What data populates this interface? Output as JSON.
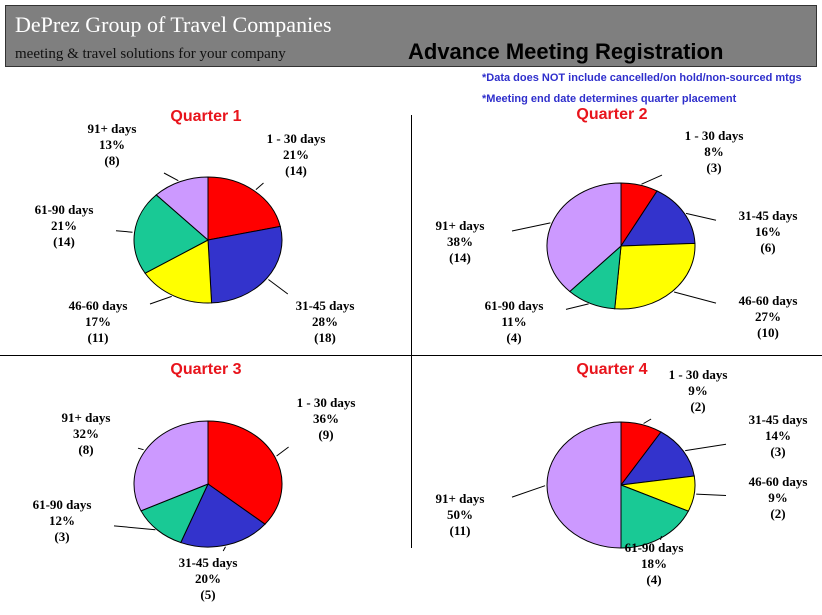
{
  "header": {
    "company": "DePrez Group of Travel Companies",
    "tagline": "meeting & travel solutions for your company",
    "title": "Advance Meeting Registration"
  },
  "notes": [
    "*Data does NOT include cancelled/on hold/non-sourced mtgs",
    "*Meeting end date determines quarter placement"
  ],
  "colors": {
    "1 - 30 days": "#ff0000",
    "31-45 days": "#3333cc",
    "46-60 days": "#ffff00",
    "61-90 days": "#19c995",
    "91+ days": "#cc99ff"
  },
  "chart_data": [
    {
      "type": "pie",
      "title": "Quarter 1",
      "slices": [
        {
          "label": "1 - 30 days",
          "percent": "21%",
          "count": "(14)",
          "value": 14
        },
        {
          "label": "31-45 days",
          "percent": "28%",
          "count": "(18)",
          "value": 18
        },
        {
          "label": "46-60 days",
          "percent": "17%",
          "count": "(11)",
          "value": 11
        },
        {
          "label": "61-90 days",
          "percent": "21%",
          "count": "(14)",
          "value": 14
        },
        {
          "label": "91+ days",
          "percent": "13%",
          "count": "(8)",
          "value": 8
        }
      ]
    },
    {
      "type": "pie",
      "title": "Quarter 2",
      "slices": [
        {
          "label": "1 - 30 days",
          "percent": "8%",
          "count": "(3)",
          "value": 3
        },
        {
          "label": "31-45 days",
          "percent": "16%",
          "count": "(6)",
          "value": 6
        },
        {
          "label": "46-60 days",
          "percent": "27%",
          "count": "(10)",
          "value": 10
        },
        {
          "label": "61-90 days",
          "percent": "11%",
          "count": "(4)",
          "value": 4
        },
        {
          "label": "91+ days",
          "percent": "38%",
          "count": "(14)",
          "value": 14
        }
      ]
    },
    {
      "type": "pie",
      "title": "Quarter 3",
      "slices": [
        {
          "label": "1 - 30 days",
          "percent": "36%",
          "count": "(9)",
          "value": 9
        },
        {
          "label": "31-45 days",
          "percent": "20%",
          "count": "(5)",
          "value": 5
        },
        {
          "label": "61-90 days",
          "percent": "12%",
          "count": "(3)",
          "value": 3
        },
        {
          "label": "91+ days",
          "percent": "32%",
          "count": "(8)",
          "value": 8
        }
      ]
    },
    {
      "type": "pie",
      "title": "Quarter 4",
      "slices": [
        {
          "label": "1 - 30 days",
          "percent": "9%",
          "count": "(2)",
          "value": 2
        },
        {
          "label": "31-45 days",
          "percent": "14%",
          "count": "(3)",
          "value": 3
        },
        {
          "label": "46-60 days",
          "percent": "9%",
          "count": "(2)",
          "value": 2
        },
        {
          "label": "61-90 days",
          "percent": "18%",
          "count": "(4)",
          "value": 4
        },
        {
          "label": "91+ days",
          "percent": "50%",
          "count": "(11)",
          "value": 11
        }
      ]
    }
  ]
}
